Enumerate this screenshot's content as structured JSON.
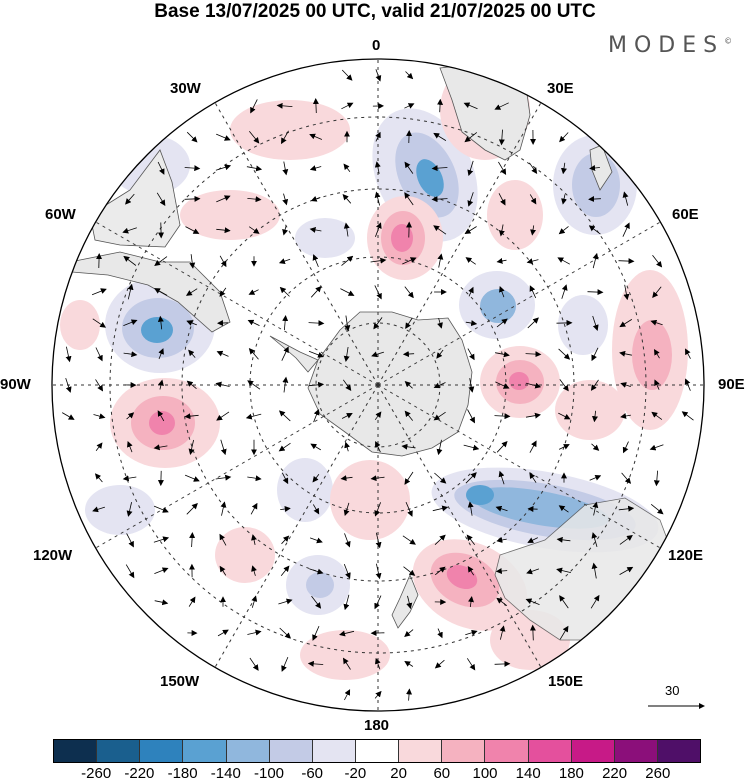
{
  "title": "Base 13/07/2025 00 UTC, valid 21/07/2025 00 UTC",
  "brand": "MODES",
  "brand_mark": "©",
  "map": {
    "projection": "south-polar-stereographic",
    "longitude_labels": {
      "top": "0",
      "top_right": "30E",
      "upper_right": "60E",
      "right": "90E",
      "lower_right": "120E",
      "bottom_right": "150E",
      "bottom": "180",
      "bottom_left": "150W",
      "lower_left": "120W",
      "left": "90W",
      "upper_left": "60W",
      "top_left": "30W"
    },
    "reference_vector_label": "30",
    "land_color": "#e8e8e8",
    "coast_color": "#555555"
  },
  "colorbar": {
    "colors": [
      "#0d2f4f",
      "#1a5f8e",
      "#2e82bd",
      "#5aa1d2",
      "#90b7dd",
      "#c3cbe6",
      "#e4e4f2",
      "#ffffff",
      "#f9d9dc",
      "#f5b2c0",
      "#f083ac",
      "#e4509d",
      "#c71a87",
      "#8b0f7a",
      "#4f0f68"
    ],
    "tick_labels": [
      "-260",
      "-220",
      "-180",
      "-140",
      "-100",
      "-60",
      "-20",
      "20",
      "60",
      "100",
      "140",
      "180",
      "220",
      "260"
    ]
  }
}
